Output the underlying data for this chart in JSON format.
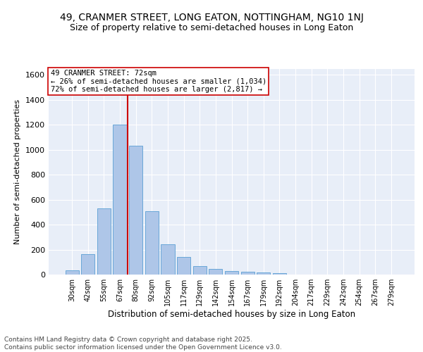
{
  "title1": "49, CRANMER STREET, LONG EATON, NOTTINGHAM, NG10 1NJ",
  "title2": "Size of property relative to semi-detached houses in Long Eaton",
  "xlabel": "Distribution of semi-detached houses by size in Long Eaton",
  "ylabel": "Number of semi-detached properties",
  "categories": [
    "30sqm",
    "42sqm",
    "55sqm",
    "67sqm",
    "80sqm",
    "92sqm",
    "105sqm",
    "117sqm",
    "129sqm",
    "142sqm",
    "154sqm",
    "167sqm",
    "179sqm",
    "192sqm",
    "204sqm",
    "217sqm",
    "229sqm",
    "242sqm",
    "254sqm",
    "267sqm",
    "279sqm"
  ],
  "values": [
    35,
    165,
    530,
    1200,
    1030,
    505,
    245,
    140,
    65,
    45,
    30,
    20,
    15,
    10,
    0,
    0,
    0,
    0,
    0,
    0,
    0
  ],
  "bar_color": "#aec6e8",
  "bar_edge_color": "#5a9fd4",
  "bg_color": "#e8eef8",
  "grid_color": "#ffffff",
  "vline_x": 3.5,
  "vline_color": "#cc0000",
  "annotation_text": "49 CRANMER STREET: 72sqm\n← 26% of semi-detached houses are smaller (1,034)\n72% of semi-detached houses are larger (2,817) →",
  "annotation_box_color": "#cc0000",
  "ylim": [
    0,
    1650
  ],
  "footer": "Contains HM Land Registry data © Crown copyright and database right 2025.\nContains public sector information licensed under the Open Government Licence v3.0.",
  "title_fontsize": 10,
  "subtitle_fontsize": 9,
  "annotation_fontsize": 7.5,
  "footer_fontsize": 6.5,
  "ylabel_fontsize": 8,
  "xlabel_fontsize": 8.5,
  "ytick_fontsize": 8,
  "xtick_fontsize": 7
}
